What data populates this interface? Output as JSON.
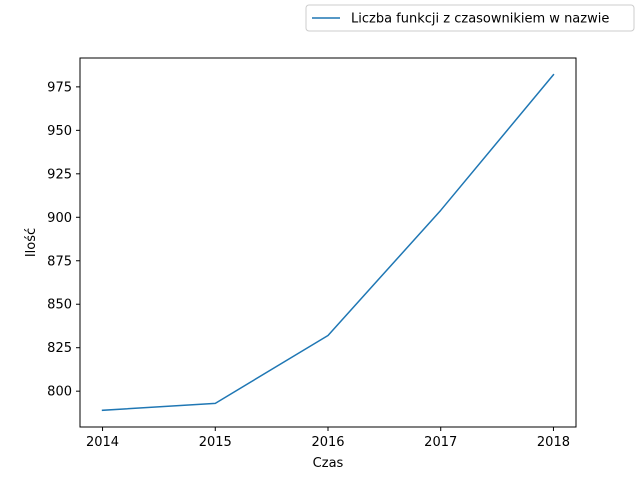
{
  "chart_data": {
    "type": "line",
    "title": "",
    "xlabel": "Czas",
    "ylabel": "Ilość",
    "x": [
      2014,
      2015,
      2016,
      2017,
      2018
    ],
    "x_tick_labels": [
      "2014",
      "2015",
      "2016",
      "2017",
      "2018"
    ],
    "y_ticks": [
      800,
      825,
      850,
      875,
      900,
      925,
      950,
      975
    ],
    "y_tick_labels": [
      "800",
      "825",
      "850",
      "875",
      "900",
      "925",
      "950",
      "975"
    ],
    "xlim": [
      2013.8,
      2018.2
    ],
    "ylim": [
      779.4,
      991.6
    ],
    "grid": false,
    "legend_position": "top-right, outside plot",
    "series": [
      {
        "name": "Liczba funkcji z czasownikiem w nazwie",
        "color": "#1f77b4",
        "values": [
          789,
          793,
          832,
          904,
          982
        ]
      }
    ]
  }
}
